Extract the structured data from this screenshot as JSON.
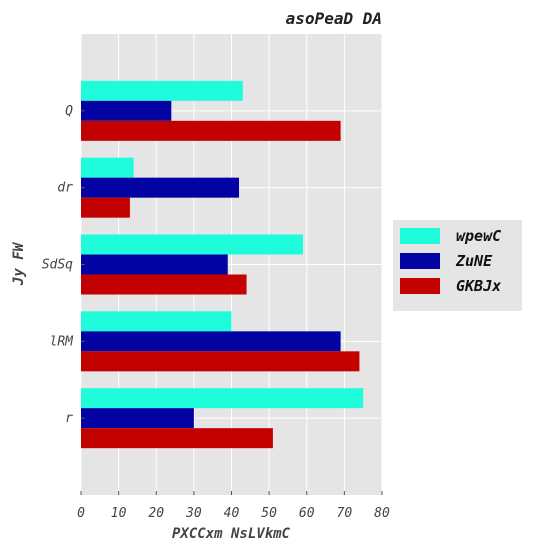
{
  "chart_data": {
    "type": "bar",
    "orientation": "horizontal",
    "title": "asoPeaD DA",
    "xlabel": "PXCCxm NsLVkmC",
    "ylabel": "Jy FW",
    "categories": [
      "r",
      "lRM",
      "SdSq",
      "dr",
      "Q"
    ],
    "xlim": [
      0,
      80
    ],
    "xticks": [
      0,
      10,
      20,
      30,
      40,
      50,
      60,
      70,
      80
    ],
    "grid": true,
    "legend_position": "right",
    "series": [
      {
        "name": "wpewC",
        "color": "#1ffcdc",
        "values": [
          75,
          40,
          59,
          14,
          43
        ]
      },
      {
        "name": "ZuNE",
        "color": "#0303a3",
        "values": [
          30,
          69,
          39,
          42,
          24
        ]
      },
      {
        "name": "GKBJx",
        "color": "#c40101",
        "values": [
          51,
          74,
          44,
          13,
          69
        ]
      }
    ]
  }
}
